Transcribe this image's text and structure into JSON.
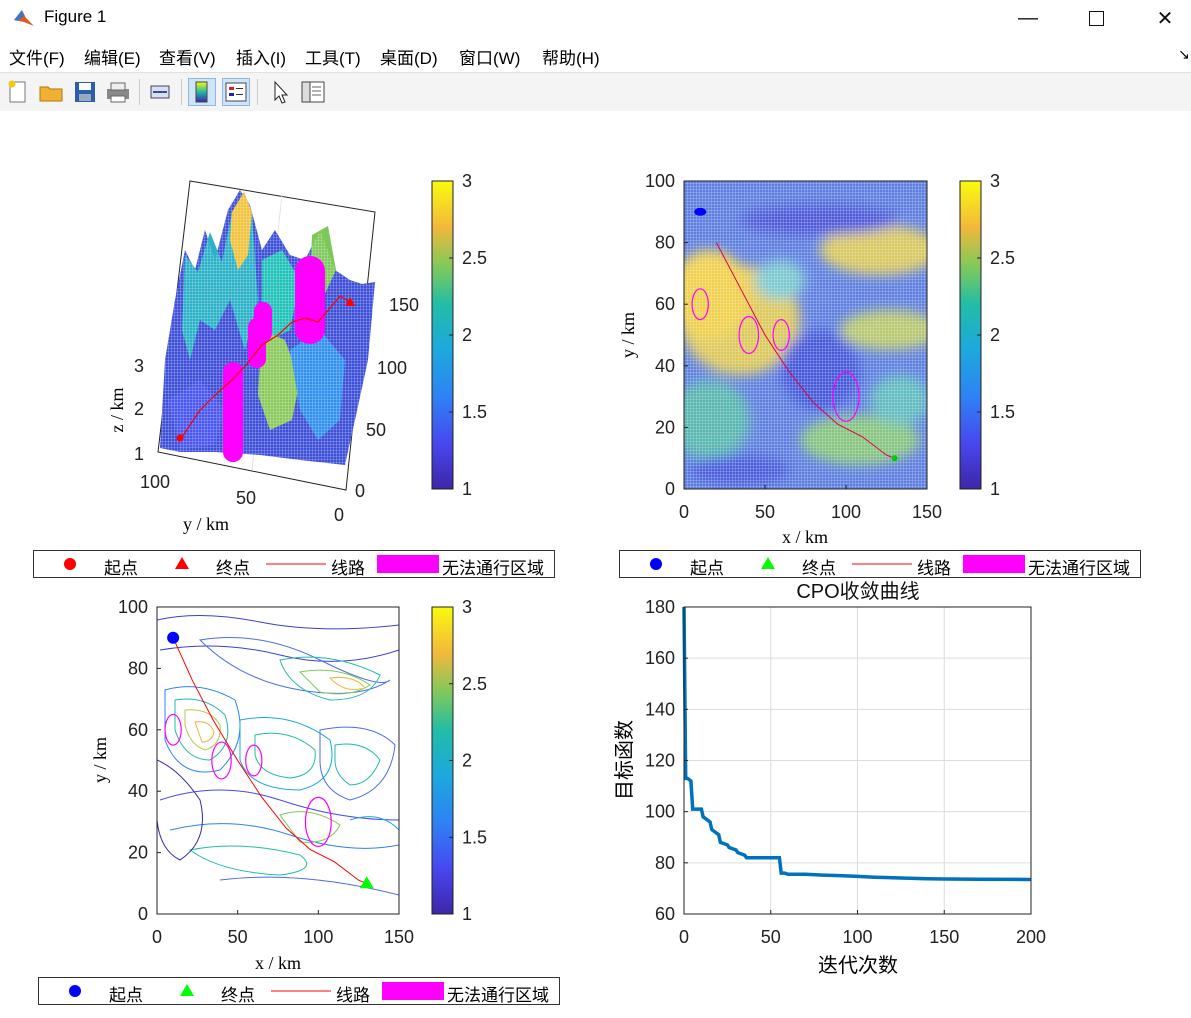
{
  "window": {
    "title": "Figure 1"
  },
  "menu": [
    "文件(F)",
    "编辑(E)",
    "查看(V)",
    "插入(I)",
    "工具(T)",
    "桌面(D)",
    "窗口(W)",
    "帮助(H)"
  ],
  "toolbar": [
    "new-file-icon",
    "open-folder-icon",
    "save-icon",
    "print-icon",
    "link-plot-icon",
    "colorbar-icon",
    "legend-icon",
    "pointer-icon",
    "property-editor-icon"
  ],
  "colors": {
    "start_a": "#ff0000",
    "end_a": "#ff0000",
    "start_b": "#0000ff",
    "end_b": "#00ff00",
    "route": "#ff0000",
    "obstacle": "#ff00ff",
    "convergence": "#0072bd"
  },
  "legend": {
    "start": "起点",
    "end": "终点",
    "route": "线路",
    "obstacle": "无法通行区域"
  },
  "chart_data": [
    {
      "type": "surface",
      "xlabel": "",
      "ylabel": "y / km",
      "zlabel": "z / km",
      "xticks": [
        0,
        50,
        100,
        150
      ],
      "yticks": [
        100,
        50,
        0
      ],
      "zticks": [
        1,
        2,
        3
      ],
      "colorbar": {
        "range": [
          1,
          3
        ],
        "ticks": [
          "1",
          "1.5",
          "2",
          "2.5",
          "3"
        ]
      },
      "start": {
        "x": 10,
        "y": 90
      },
      "end": {
        "x": 130,
        "y": 10
      },
      "legend": [
        "起点",
        "终点",
        "线路",
        "无法通行区域"
      ]
    },
    {
      "type": "heatmap",
      "xlabel": "x / km",
      "ylabel": "y / km",
      "xticks": [
        0,
        50,
        100,
        150
      ],
      "yticks": [
        0,
        20,
        40,
        60,
        80,
        100
      ],
      "xlim": [
        0,
        150
      ],
      "ylim": [
        0,
        100
      ],
      "colorbar": {
        "range": [
          1,
          3
        ],
        "ticks": [
          "1",
          "1.5",
          "2",
          "2.5",
          "3"
        ]
      },
      "start": {
        "x": 10,
        "y": 90
      },
      "end": {
        "x": 130,
        "y": 10
      },
      "obstacles": [
        {
          "x": 10,
          "y": 60,
          "rx": 5,
          "ry": 5
        },
        {
          "x": 40,
          "y": 50,
          "rx": 6,
          "ry": 6
        },
        {
          "x": 60,
          "y": 50,
          "rx": 5,
          "ry": 5
        },
        {
          "x": 100,
          "y": 30,
          "rx": 8,
          "ry": 8
        }
      ],
      "route": [
        [
          20,
          80
        ],
        [
          35,
          65
        ],
        [
          50,
          50
        ],
        [
          65,
          38
        ],
        [
          80,
          28
        ],
        [
          95,
          21
        ],
        [
          110,
          17
        ],
        [
          125,
          11
        ],
        [
          130,
          10
        ]
      ],
      "legend": [
        "起点",
        "终点",
        "线路",
        "无法通行区域"
      ]
    },
    {
      "type": "contour",
      "xlabel": "x / km",
      "ylabel": "y / km",
      "xticks": [
        0,
        50,
        100,
        150
      ],
      "yticks": [
        0,
        20,
        40,
        60,
        80,
        100
      ],
      "xlim": [
        0,
        150
      ],
      "ylim": [
        0,
        100
      ],
      "colorbar": {
        "range": [
          1,
          3
        ],
        "ticks": [
          "1",
          "1.5",
          "2",
          "2.5",
          "3"
        ]
      },
      "start": {
        "x": 10,
        "y": 90
      },
      "end": {
        "x": 130,
        "y": 10
      },
      "obstacles": [
        {
          "x": 10,
          "y": 60,
          "rx": 5,
          "ry": 5
        },
        {
          "x": 40,
          "y": 50,
          "rx": 6,
          "ry": 6
        },
        {
          "x": 60,
          "y": 50,
          "rx": 5,
          "ry": 5
        },
        {
          "x": 100,
          "y": 30,
          "rx": 8,
          "ry": 8
        }
      ],
      "route": [
        [
          10,
          90
        ],
        [
          22,
          76
        ],
        [
          35,
          63
        ],
        [
          50,
          50
        ],
        [
          65,
          38
        ],
        [
          80,
          28
        ],
        [
          95,
          21
        ],
        [
          110,
          17
        ],
        [
          125,
          11
        ],
        [
          130,
          10
        ]
      ],
      "legend": [
        "起点",
        "终点",
        "线路",
        "无法通行区域"
      ]
    },
    {
      "type": "line",
      "title": "CPO收敛曲线",
      "xlabel": "迭代次数",
      "ylabel": "目标函数",
      "xlim": [
        0,
        200
      ],
      "ylim": [
        60,
        180
      ],
      "xticks": [
        0,
        50,
        100,
        150,
        200
      ],
      "yticks": [
        60,
        80,
        100,
        120,
        140,
        160,
        180
      ],
      "grid": true,
      "series": [
        {
          "x": [
            0,
            1,
            2,
            4,
            5,
            10,
            11,
            15,
            16,
            20,
            21,
            25,
            26,
            30,
            31,
            35,
            36,
            45,
            46,
            55,
            56,
            58,
            60,
            65,
            70,
            80,
            90,
            100,
            110,
            120,
            130,
            140,
            150,
            170,
            200
          ],
          "y": [
            180,
            113,
            113,
            112,
            101,
            101,
            98,
            96,
            93,
            91,
            88,
            87,
            86,
            85,
            84,
            83,
            82,
            82,
            82,
            82,
            76,
            76,
            75.5,
            75.5,
            75.5,
            75.2,
            75,
            74.7,
            74.4,
            74.2,
            74,
            73.8,
            73.7,
            73.6,
            73.5
          ]
        }
      ]
    }
  ]
}
